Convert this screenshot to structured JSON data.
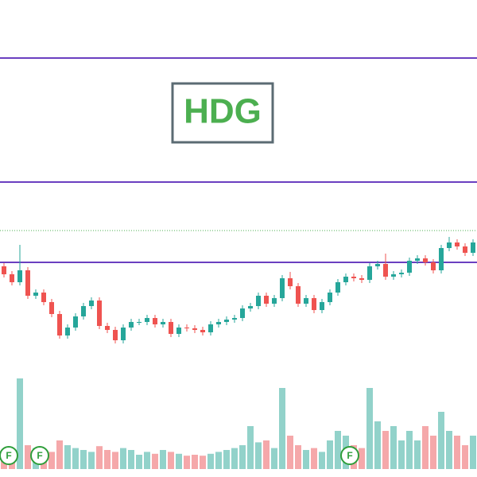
{
  "chart_data": {
    "type": "candlestick",
    "title": "HDG",
    "ylim": [
      20,
      32
    ],
    "volume_lim": [
      0,
      100
    ],
    "open": [
      25.3,
      25.1,
      24.9,
      25.2,
      24.56,
      24.64,
      24.4,
      24.1,
      23.56,
      23.76,
      24.04,
      24.3,
      24.44,
      23.8,
      23.7,
      23.44,
      23.76,
      23.9,
      23.9,
      24.0,
      23.84,
      23.9,
      23.6,
      23.76,
      23.74,
      23.7,
      23.64,
      23.84,
      23.9,
      23.96,
      24.0,
      24.24,
      24.3,
      24.56,
      24.36,
      24.5,
      25.0,
      24.8,
      24.36,
      24.5,
      24.2,
      24.4,
      24.64,
      24.9,
      25.04,
      25.0,
      24.96,
      25.3,
      25.36,
      25.04,
      25.1,
      25.14,
      25.44,
      25.5,
      25.4,
      25.2,
      25.76,
      25.9,
      25.8,
      25.64
    ],
    "high": [
      25.38,
      25.18,
      25.84,
      25.28,
      24.72,
      24.72,
      24.48,
      24.18,
      23.84,
      24.12,
      24.38,
      24.52,
      24.52,
      23.88,
      23.78,
      23.84,
      23.98,
      23.98,
      24.08,
      24.08,
      23.98,
      23.98,
      23.84,
      23.84,
      23.82,
      23.78,
      23.92,
      23.98,
      24.04,
      24.08,
      24.32,
      24.38,
      24.64,
      24.64,
      24.58,
      25.08,
      25.16,
      24.88,
      24.58,
      24.58,
      24.48,
      24.72,
      24.98,
      25.12,
      25.12,
      25.08,
      25.38,
      25.44,
      25.62,
      25.18,
      25.22,
      25.52,
      25.58,
      25.58,
      25.48,
      25.84,
      26.04,
      25.98,
      25.88,
      25.98
    ],
    "low": [
      25.02,
      24.82,
      24.82,
      24.48,
      24.48,
      24.32,
      24.02,
      23.48,
      23.48,
      23.68,
      23.96,
      24.22,
      23.72,
      23.62,
      23.36,
      23.36,
      23.68,
      23.82,
      23.82,
      23.76,
      23.76,
      23.52,
      23.52,
      23.66,
      23.62,
      23.56,
      23.56,
      23.76,
      23.82,
      23.88,
      23.92,
      24.16,
      24.22,
      24.28,
      24.28,
      24.42,
      24.72,
      24.28,
      24.28,
      24.12,
      24.12,
      24.32,
      24.56,
      24.82,
      24.92,
      24.88,
      24.88,
      25.22,
      24.96,
      24.96,
      25.02,
      25.06,
      25.36,
      25.32,
      25.12,
      25.12,
      25.68,
      25.72,
      25.56,
      25.56
    ],
    "close": [
      25.1,
      24.9,
      25.2,
      24.56,
      24.64,
      24.4,
      24.1,
      23.56,
      23.76,
      24.04,
      24.3,
      24.44,
      23.8,
      23.7,
      23.44,
      23.76,
      23.9,
      23.9,
      24.0,
      23.84,
      23.9,
      23.6,
      23.76,
      23.74,
      23.7,
      23.64,
      23.84,
      23.9,
      23.96,
      24.0,
      24.24,
      24.3,
      24.56,
      24.36,
      24.5,
      25.0,
      24.8,
      24.36,
      24.5,
      24.2,
      24.4,
      24.64,
      24.9,
      25.04,
      25.0,
      24.96,
      25.3,
      25.36,
      25.04,
      25.1,
      25.14,
      25.44,
      25.5,
      25.4,
      25.2,
      25.76,
      25.9,
      25.8,
      25.64,
      25.9
    ],
    "volume": [
      20,
      18,
      95,
      25,
      22,
      20,
      18,
      30,
      25,
      22,
      20,
      18,
      24,
      20,
      18,
      22,
      20,
      15,
      18,
      16,
      20,
      18,
      16,
      14,
      15,
      14,
      16,
      18,
      20,
      22,
      25,
      45,
      28,
      30,
      22,
      85,
      35,
      25,
      20,
      22,
      18,
      30,
      40,
      35,
      25,
      22,
      85,
      50,
      40,
      45,
      30,
      40,
      30,
      45,
      35,
      60,
      40,
      35,
      25,
      35
    ],
    "up_color": "#26a69a",
    "down_color": "#ef5350",
    "volume_up_color": "#92d2ca",
    "volume_down_color": "#f5a8aa",
    "hlines": [
      30.54,
      27.42,
      25.4
    ],
    "hline_color": "#6a3fc0",
    "last_price": 26.2,
    "last_price_color": "#4caf50",
    "events": [
      {
        "index": 0,
        "label": "F"
      },
      {
        "index": 4,
        "label": "F"
      },
      {
        "index": 43,
        "label": "F"
      }
    ]
  }
}
